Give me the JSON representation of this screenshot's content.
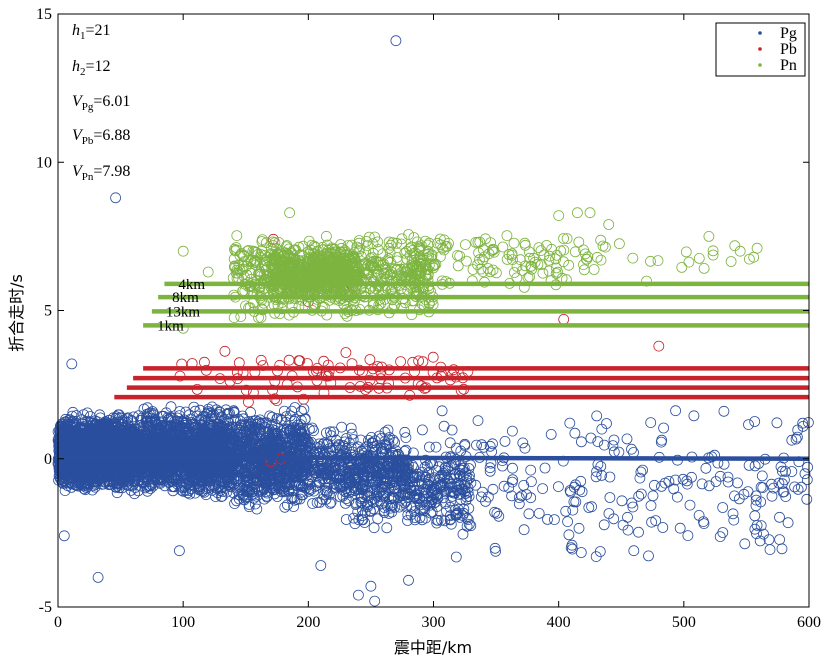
{
  "chart_data": {
    "type": "scatter",
    "xlabel": "震中距/km",
    "ylabel": "折合走时/s",
    "xlim": [
      0,
      600
    ],
    "ylim": [
      -5,
      15
    ],
    "xticks": [
      "0",
      "100",
      "200",
      "300",
      "400",
      "500",
      "600"
    ],
    "yticks": [
      "-5",
      "0",
      "5",
      "10",
      "15"
    ],
    "grid": false,
    "legend_position": "top-right",
    "parameters": [
      {
        "var": "h",
        "sub": "1",
        "value": "=21"
      },
      {
        "var": "h",
        "sub": "2",
        "value": "=12"
      },
      {
        "var": "V",
        "sub": "Pg",
        "value": "=6.01"
      },
      {
        "var": "V",
        "sub": "Pb",
        "value": "=6.88"
      },
      {
        "var": "V",
        "sub": "Pn",
        "value": "=7.98"
      }
    ],
    "series": [
      {
        "name": "Pg",
        "color": "#2b4f9e",
        "regions": [
          {
            "x": [
              0,
              60
            ],
            "y": [
              -1.0,
              1.4
            ],
            "n": 1400
          },
          {
            "x": [
              5,
              140
            ],
            "y": [
              -1.2,
              1.6
            ],
            "n": 1700
          },
          {
            "x": [
              60,
              200
            ],
            "y": [
              -1.4,
              1.8
            ],
            "n": 1300
          },
          {
            "x": [
              140,
              280
            ],
            "y": [
              -1.8,
              1.2
            ],
            "n": 700
          },
          {
            "x": [
              230,
              330
            ],
            "y": [
              -2.4,
              0.6
            ],
            "n": 350
          },
          {
            "x": [
              280,
              600
            ],
            "y": [
              -3.5,
              1.8
            ],
            "n": 260
          }
        ],
        "outliers": [
          {
            "x": 270,
            "y": 14.1
          },
          {
            "x": 46,
            "y": 8.8
          },
          {
            "x": 11,
            "y": 3.2
          },
          {
            "x": 32,
            "y": -4.0
          },
          {
            "x": 97,
            "y": -3.1
          },
          {
            "x": 5,
            "y": -2.6
          },
          {
            "x": 250,
            "y": -4.3
          },
          {
            "x": 253,
            "y": -4.8
          },
          {
            "x": 280,
            "y": -4.1
          },
          {
            "x": 240,
            "y": -4.6
          },
          {
            "x": 595,
            "y": 1.2
          },
          {
            "x": 532,
            "y": 1.6
          },
          {
            "x": 548,
            "y": -1.2
          },
          {
            "x": 460,
            "y": -3.1
          },
          {
            "x": 430,
            "y": -3.3
          },
          {
            "x": 410,
            "y": -3.0
          },
          {
            "x": 210,
            "y": -3.6
          }
        ],
        "fit_line": {
          "x": [
            0,
            600
          ],
          "y": [
            0.05,
            0.05
          ],
          "y_end": 0.0
        }
      },
      {
        "name": "Pb",
        "color": "#c8232b",
        "regions": [
          {
            "x": [
              90,
              330
            ],
            "y": [
              1.8,
              3.8
            ],
            "n": 90
          }
        ],
        "outliers": [
          {
            "x": 172,
            "y": 7.4
          },
          {
            "x": 200,
            "y": 5.3
          },
          {
            "x": 228,
            "y": 5.7
          },
          {
            "x": 404,
            "y": 4.7
          },
          {
            "x": 480,
            "y": 3.8
          },
          {
            "x": 170,
            "y": -0.1
          },
          {
            "x": 178,
            "y": 0.0
          }
        ],
        "fit_lines": [
          {
            "label": "",
            "x": [
              68,
              600
            ],
            "y": 3.05
          },
          {
            "label": "",
            "x": [
              60,
              600
            ],
            "y": 2.72
          },
          {
            "label": "",
            "x": [
              55,
              600
            ],
            "y": 2.4
          },
          {
            "label": "",
            "x": [
              45,
              600
            ],
            "y": 2.08
          }
        ]
      },
      {
        "name": "Pn",
        "color": "#7db440",
        "regions": [
          {
            "x": [
              140,
              300
            ],
            "y": [
              4.7,
              7.6
            ],
            "n": 650
          },
          {
            "x": [
              170,
              240
            ],
            "y": [
              5.3,
              7.2
            ],
            "n": 500
          },
          {
            "x": [
              280,
              430
            ],
            "y": [
              5.6,
              7.8
            ],
            "n": 130
          },
          {
            "x": [
              430,
              560
            ],
            "y": [
              5.8,
              7.6
            ],
            "n": 22
          }
        ],
        "outliers": [
          {
            "x": 185,
            "y": 8.3
          },
          {
            "x": 400,
            "y": 8.2
          },
          {
            "x": 415,
            "y": 8.3
          },
          {
            "x": 425,
            "y": 8.3
          },
          {
            "x": 440,
            "y": 7.9
          },
          {
            "x": 520,
            "y": 7.5
          },
          {
            "x": 545,
            "y": 7.0
          },
          {
            "x": 100,
            "y": 7.0
          },
          {
            "x": 120,
            "y": 6.3
          },
          {
            "x": 140,
            "y": 6.1
          },
          {
            "x": 100,
            "y": 4.4
          }
        ],
        "fit_lines": [
          {
            "label": "4km",
            "x": [
              85,
              600
            ],
            "y": 5.9
          },
          {
            "label": "8km",
            "x": [
              80,
              600
            ],
            "y": 5.45
          },
          {
            "label": "13km",
            "x": [
              75,
              600
            ],
            "y": 4.97
          },
          {
            "label": "1km",
            "x": [
              68,
              600
            ],
            "y": 4.5
          }
        ]
      }
    ]
  }
}
